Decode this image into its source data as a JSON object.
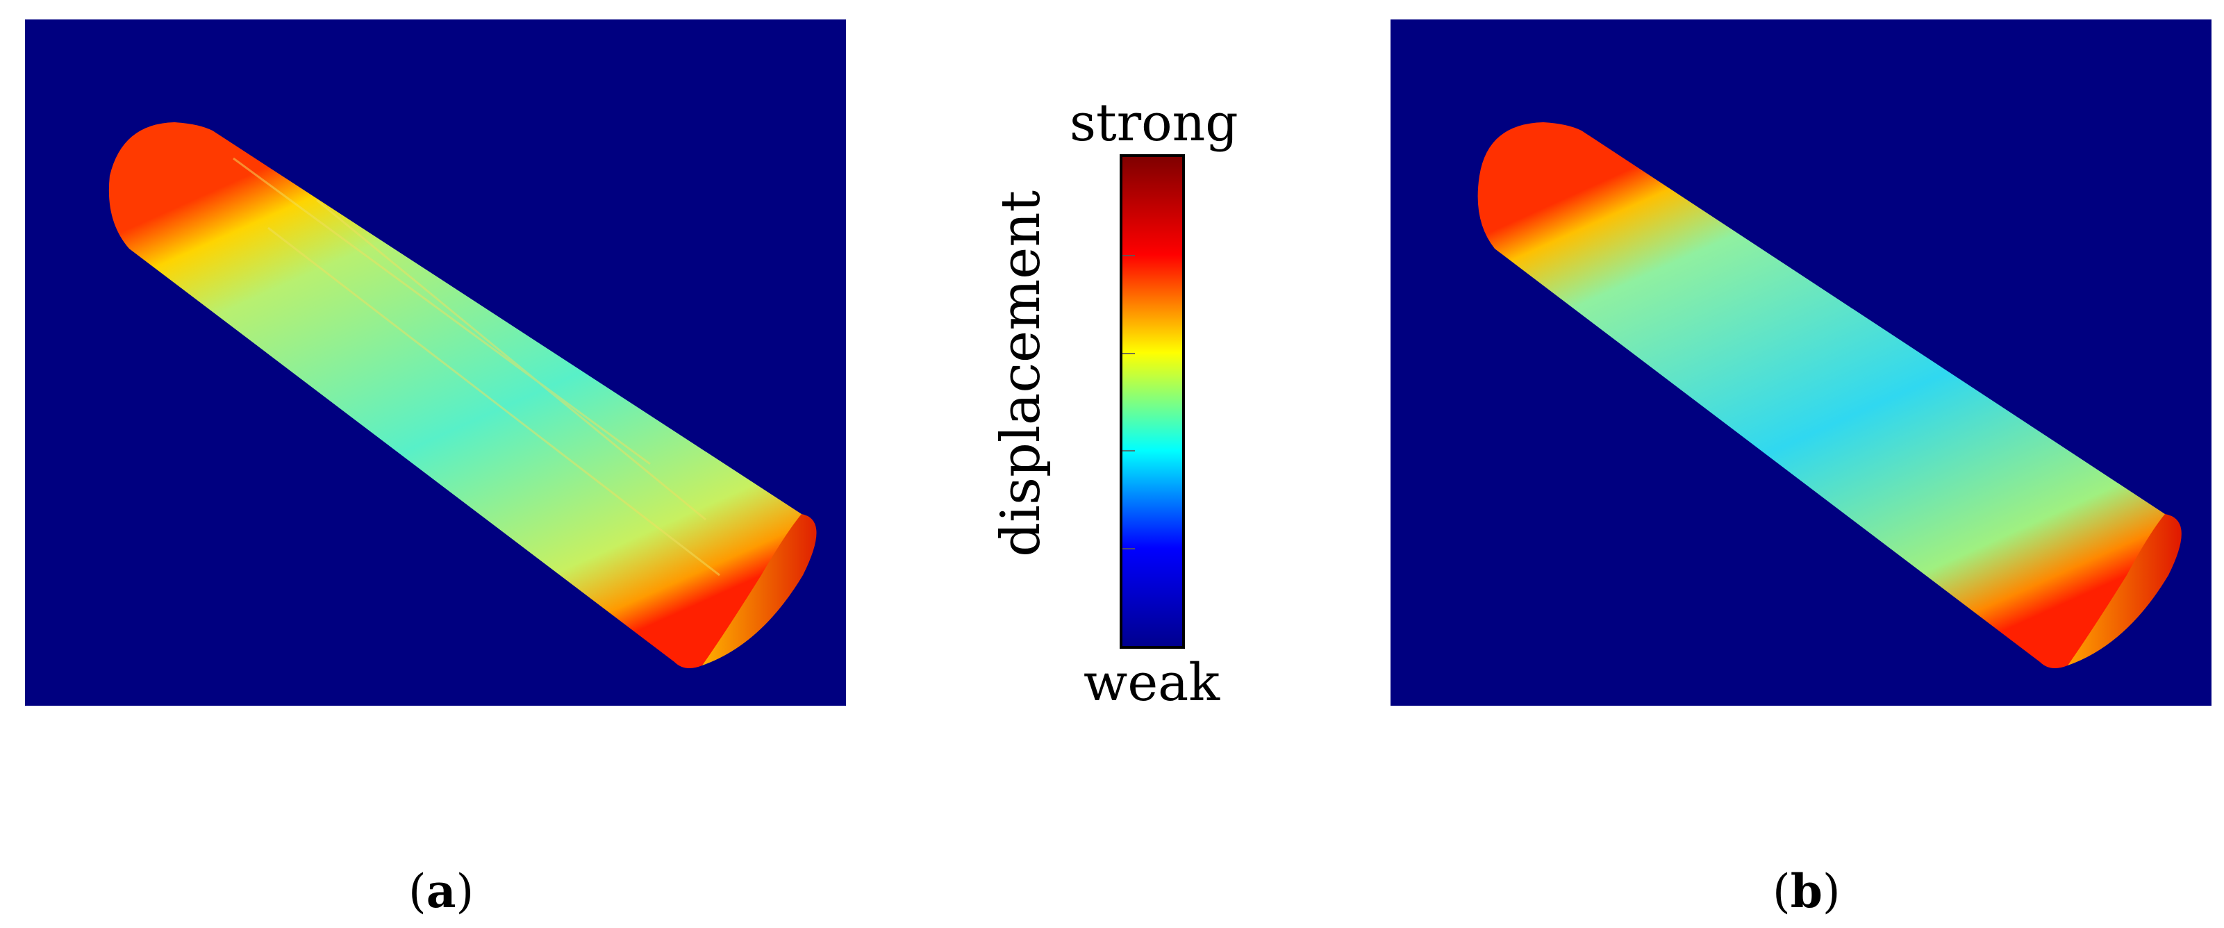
{
  "colorbar": {
    "label": "displacement",
    "top_label": "strong",
    "bottom_label": "weak",
    "gradient": [
      "#00008f",
      "#0000ff",
      "#00ffff",
      "#ffff00",
      "#ff0000",
      "#800000"
    ]
  },
  "panels": [
    {
      "caption_open": "(",
      "caption_letter": "a",
      "caption_close": ")"
    },
    {
      "caption_open": "(",
      "caption_letter": "b",
      "caption_close": ")"
    }
  ],
  "colors": {
    "background": "#000080",
    "surface_mid": "#6ef0b0",
    "surface_edge": "#ff2a00",
    "surface_light": "#d8f060"
  }
}
